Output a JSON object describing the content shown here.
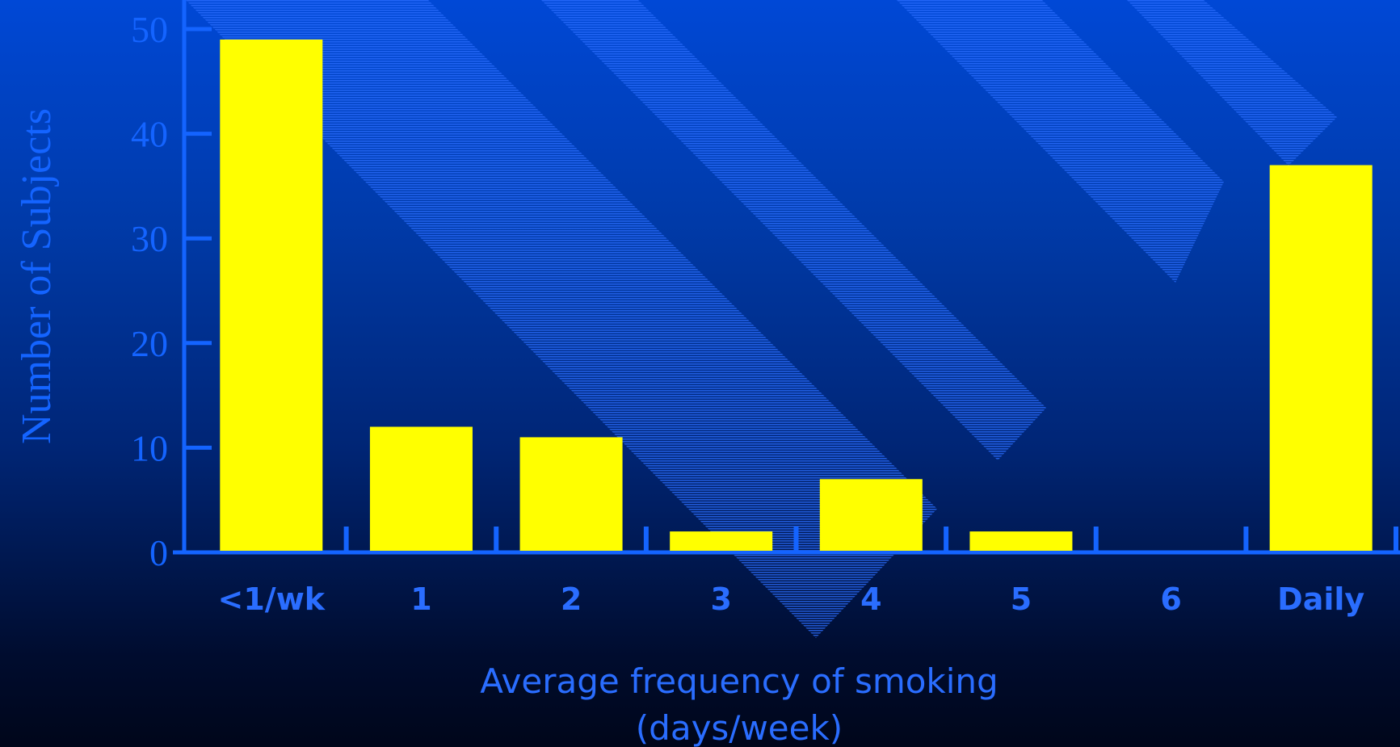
{
  "colors": {
    "bar": "#ffff00",
    "axis": "#1464ff",
    "text": "#2a6dff",
    "stripe": "#2a6dff"
  },
  "chart_data": {
    "type": "bar",
    "title": "",
    "categories": [
      "<1/wk",
      "1",
      "2",
      "3",
      "4",
      "5",
      "6",
      "Daily"
    ],
    "values": [
      49,
      12,
      11,
      2,
      7,
      2,
      0,
      37
    ],
    "xlabel_line1": "Average frequency of smoking",
    "xlabel_line2": "(days/week)",
    "ylabel": "Number of Subjects",
    "ylim": [
      0,
      50
    ],
    "yticks": [
      "0",
      "10",
      "20",
      "30",
      "40",
      "50"
    ],
    "grid": false,
    "legend": "none"
  }
}
